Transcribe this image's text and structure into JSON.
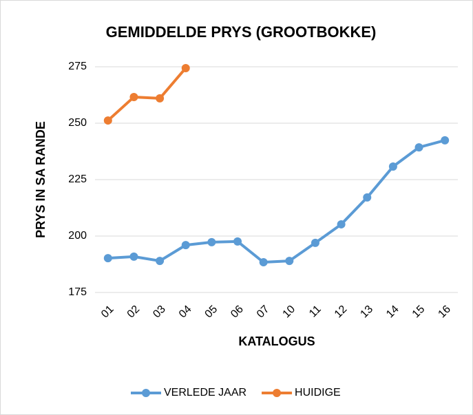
{
  "chart_data": {
    "type": "line",
    "title": "GEMIDDELDE PRYS (GROOTBOKKE)",
    "x_label": "KATALOGUS",
    "y_label": "PRYS IN SA RANDE",
    "categories": [
      "01",
      "02",
      "03",
      "04",
      "05",
      "06",
      "07",
      "10",
      "11",
      "12",
      "13",
      "14",
      "15",
      "16"
    ],
    "series": [
      {
        "name": "VERLEDE JAAR",
        "color": "#5b9bd5",
        "values": [
          190.2,
          190.9,
          189,
          196,
          197.3,
          197.6,
          188.4,
          189,
          197,
          205.2,
          217.1,
          230.8,
          239.3,
          242.4
        ]
      },
      {
        "name": "HUIDIGE",
        "color": "#ed7d31",
        "values": [
          251.2,
          261.6,
          261,
          274.4,
          null,
          null,
          null,
          null,
          null,
          null,
          null,
          null,
          null,
          null
        ]
      }
    ],
    "ylim": [
      175,
      275
    ],
    "yticks": [
      175,
      200,
      225,
      250,
      275
    ],
    "grid": true,
    "legend": "bottom"
  }
}
